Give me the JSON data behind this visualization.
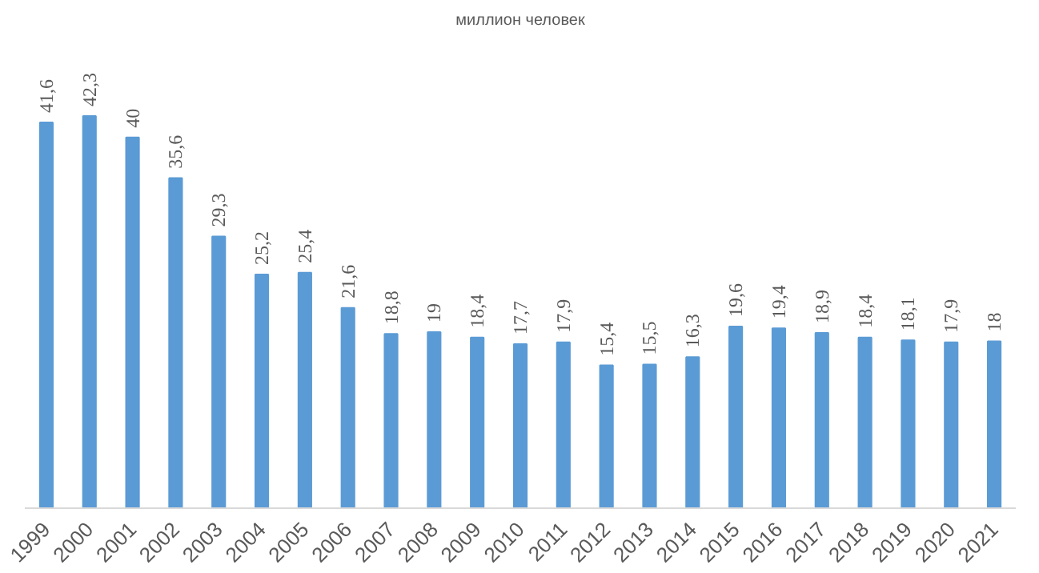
{
  "chart_data": {
    "type": "bar",
    "title": "миллион человек",
    "categories": [
      "1999",
      "2000",
      "2001",
      "2002",
      "2003",
      "2004",
      "2005",
      "2006",
      "2007",
      "2008",
      "2009",
      "2010",
      "2011",
      "2012",
      "2013",
      "2014",
      "2015",
      "2016",
      "2017",
      "2018",
      "2019",
      "2020",
      "2021"
    ],
    "values": [
      41.6,
      42.3,
      40,
      35.6,
      29.3,
      25.2,
      25.4,
      21.6,
      18.8,
      19,
      18.4,
      17.7,
      17.9,
      15.4,
      15.5,
      16.3,
      19.6,
      19.4,
      18.9,
      18.4,
      18.1,
      17.9,
      18
    ],
    "value_labels": [
      "41,6",
      "42,3",
      "40",
      "35,6",
      "29,3",
      "25,2",
      "25,4",
      "21,6",
      "18,8",
      "19",
      "18,4",
      "17,7",
      "17,9",
      "15,4",
      "15,5",
      "16,3",
      "19,6",
      "19,4",
      "18,9",
      "18,4",
      "18,1",
      "17,9",
      "18"
    ],
    "color": "#5b9bd5"
  }
}
